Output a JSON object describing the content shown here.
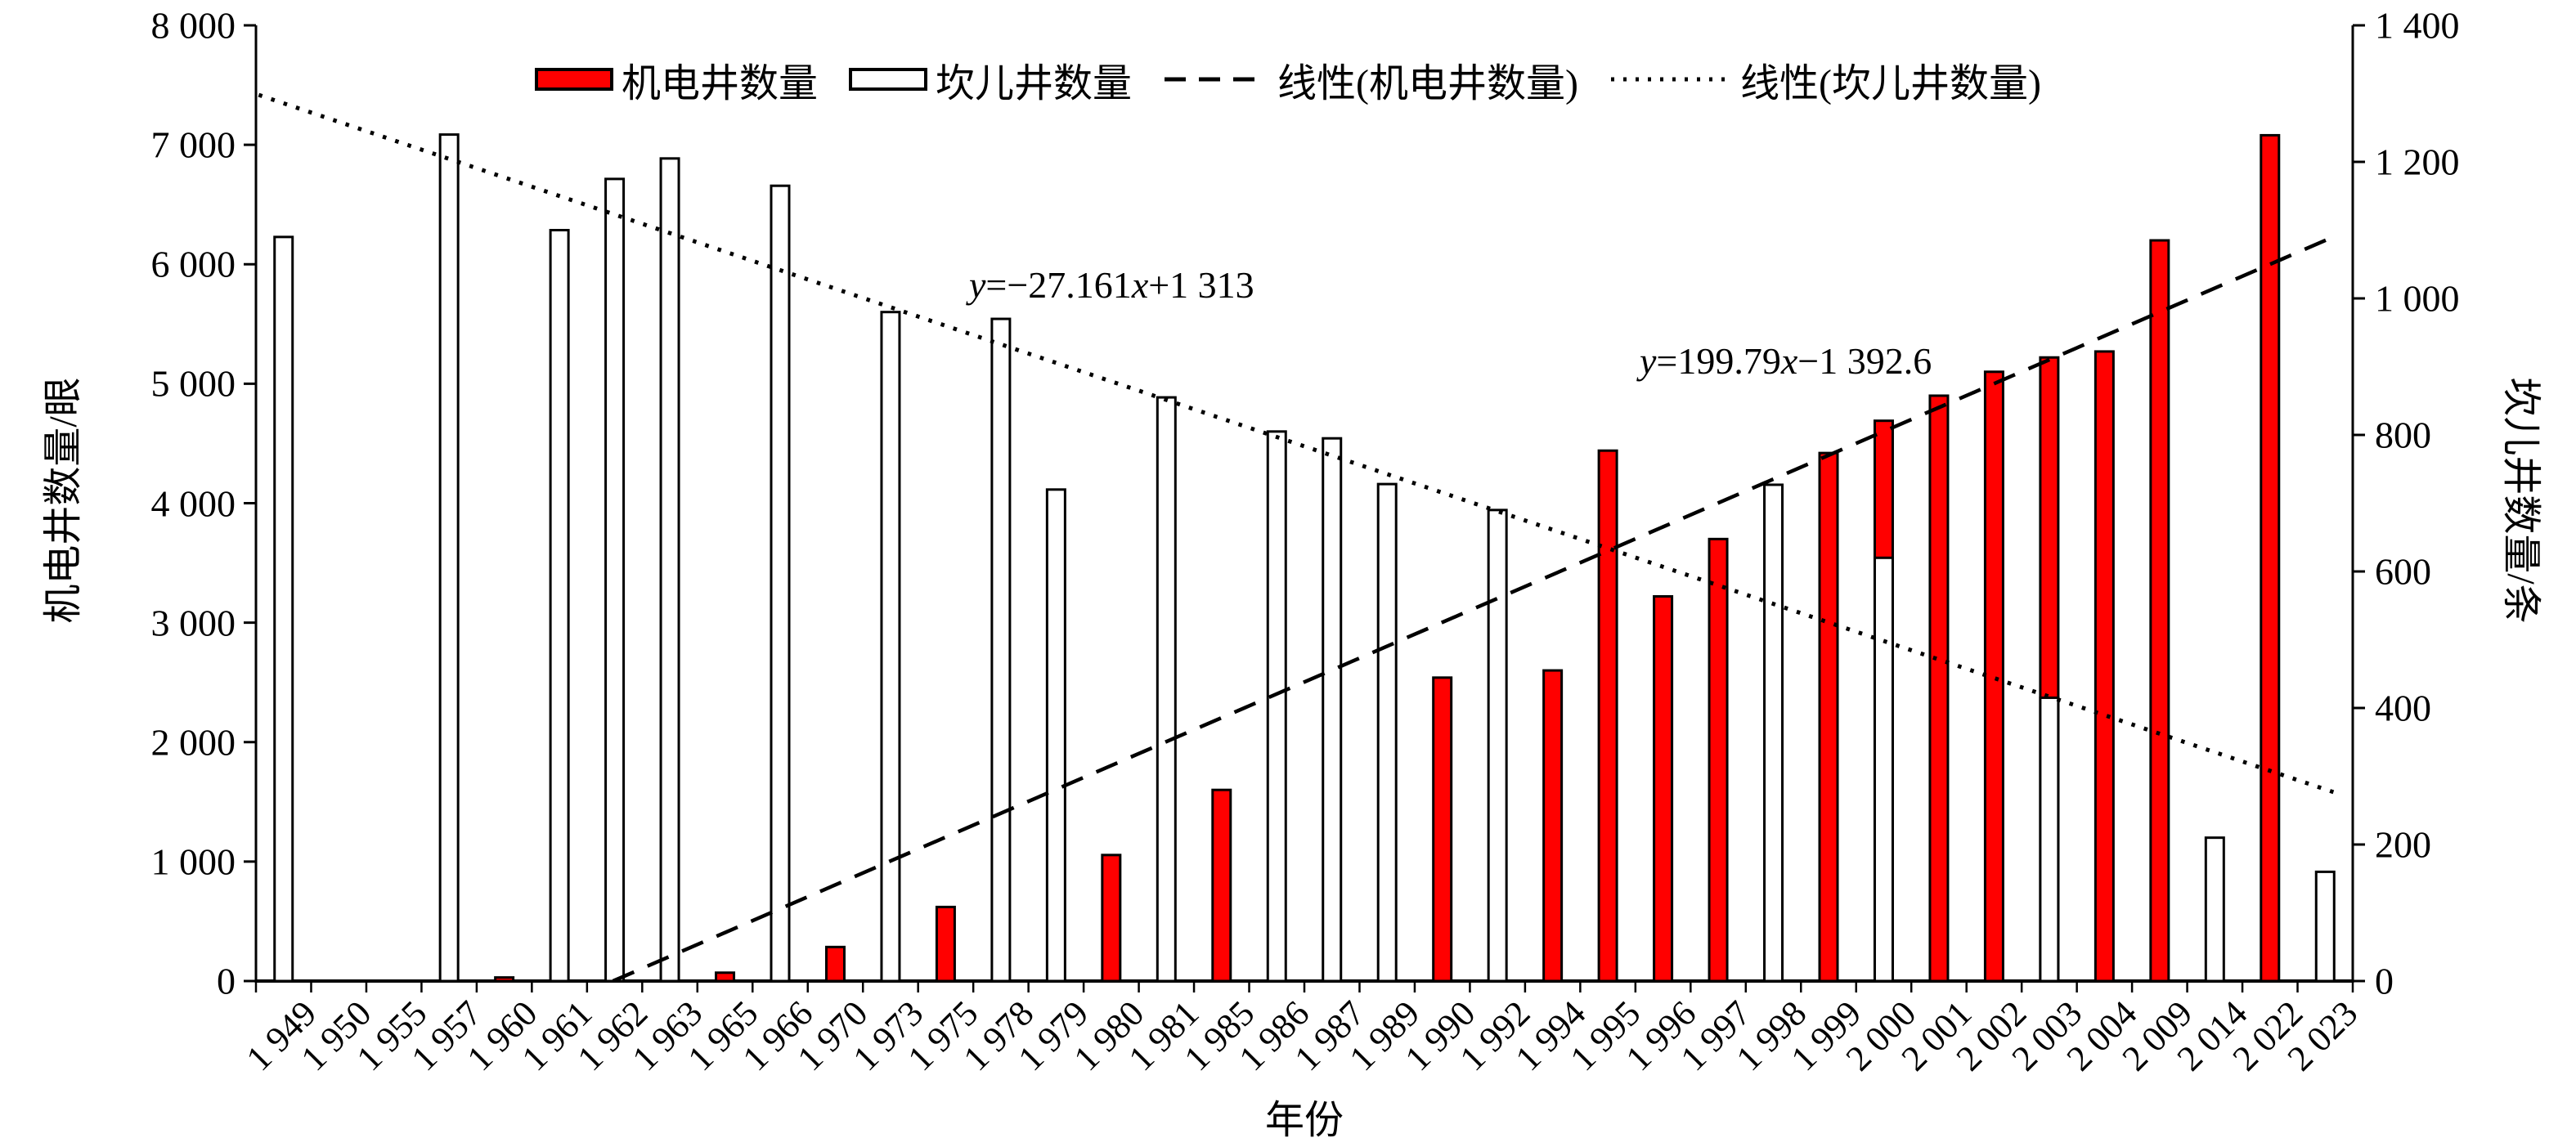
{
  "figure_background": "#ffffff",
  "legend": {
    "items": [
      {
        "label": "机电井数量",
        "swatch": "red-filled-square"
      },
      {
        "label": "坎儿井数量",
        "swatch": "white-outlined-square"
      },
      {
        "label": "线性(机电井数量)",
        "swatch": "dashed-line-sample"
      },
      {
        "label": "线性(坎儿井数量)",
        "swatch": "dotted-line-sample"
      }
    ]
  },
  "annotations": {
    "karez_eq": {
      "lead": "y",
      "mid": "=−27.161",
      "var": "x",
      "tail": "+1 313"
    },
    "well_eq": {
      "lead": "y",
      "mid": "=199.79",
      "var": "x",
      "tail": "−1 392.6"
    }
  },
  "chart_data": {
    "type": "bar",
    "title": "",
    "xlabel": "年份",
    "categories": [
      "1949",
      "1950",
      "1955",
      "1957",
      "1960",
      "1961",
      "1962",
      "1963",
      "1965",
      "1966",
      "1970",
      "1973",
      "1975",
      "1978",
      "1979",
      "1980",
      "1981",
      "1985",
      "1986",
      "1987",
      "1989",
      "1990",
      "1992",
      "1994",
      "1995",
      "1996",
      "1997",
      "1998",
      "1999",
      "2000",
      "2001",
      "2002",
      "2003",
      "2004",
      "2009",
      "2014",
      "2022",
      "2023"
    ],
    "x_tick_labels": [
      "1 949",
      "1 950",
      "1 955",
      "1 957",
      "1 960",
      "1 961",
      "1 962",
      "1 963",
      "1 965",
      "1 966",
      "1 970",
      "1 973",
      "1 975",
      "1 978",
      "1 979",
      "1 980",
      "1 981",
      "1 985",
      "1 986",
      "1 987",
      "1 989",
      "1 990",
      "1 992",
      "1 994",
      "1 995",
      "1 996",
      "1 997",
      "1 998",
      "1 999",
      "2 000",
      "2 001",
      "2 002",
      "2 003",
      "2 004",
      "2 009",
      "2 014",
      "2 022",
      "2 023"
    ],
    "series": [
      {
        "name": "机电井数量",
        "axis": "left",
        "type": "bar",
        "fill": "#ff0000",
        "stroke": "#000000",
        "values": [
          null,
          null,
          null,
          null,
          30,
          null,
          null,
          null,
          70,
          null,
          285,
          null,
          620,
          null,
          null,
          1055,
          null,
          1600,
          null,
          null,
          null,
          2540,
          null,
          2600,
          4440,
          3220,
          3700,
          null,
          4420,
          4690,
          4900,
          5100,
          5220,
          5270,
          6200,
          null,
          7080,
          null
        ]
      },
      {
        "name": "坎儿井数量",
        "axis": "right",
        "type": "bar",
        "fill": "#ffffff",
        "stroke": "#000000",
        "values": [
          1090,
          null,
          null,
          1240,
          null,
          1100,
          1175,
          1205,
          null,
          1165,
          null,
          980,
          null,
          970,
          720,
          null,
          855,
          null,
          805,
          795,
          728,
          null,
          690,
          null,
          null,
          null,
          null,
          727,
          null,
          620,
          null,
          null,
          415,
          null,
          null,
          210,
          null,
          160
        ]
      }
    ],
    "trendlines": [
      {
        "name": "线性(机电井数量)",
        "style": "dashed",
        "axis": "left",
        "slope": 199.79,
        "intercept": -1392.6,
        "equation_label": "y=199.79x−1 392.6"
      },
      {
        "name": "线性(坎儿井数量)",
        "style": "dotted",
        "axis": "right",
        "slope": -27.161,
        "intercept": 1313,
        "equation_label": "y=−27.161x+1 313"
      }
    ],
    "left_axis": {
      "title": "机电井数量/眼",
      "min": 0,
      "max": 8000,
      "step": 1000,
      "tick_labels": [
        "0",
        "1 000",
        "2 000",
        "3 000",
        "4 000",
        "5 000",
        "6 000",
        "7 000",
        "8 000"
      ]
    },
    "right_axis": {
      "title": "坎儿井数量/条",
      "min": 0,
      "max": 1400,
      "step": 200,
      "tick_labels": [
        "0",
        "200",
        "400",
        "600",
        "800",
        "1 000",
        "1 200",
        "1 400"
      ]
    },
    "x_axis": {
      "title": "年份"
    },
    "legend_position": "top-center",
    "grid": false
  }
}
